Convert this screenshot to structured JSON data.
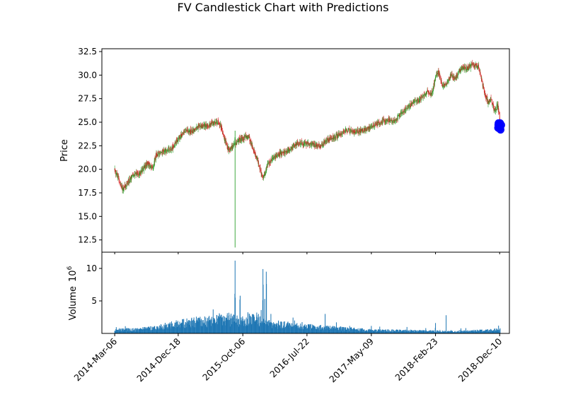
{
  "chart_data": {
    "type": "candlestick",
    "title": "FV Candlestick Chart with Predictions",
    "price_panel": {
      "ylabel": "Price",
      "ylim": [
        11.2,
        32.8
      ],
      "yticks": [
        12.5,
        15.0,
        17.5,
        20.0,
        22.5,
        25.0,
        27.5,
        30.0,
        32.5
      ],
      "ytick_labels": [
        "12.5",
        "15.0",
        "17.5",
        "20.0",
        "22.5",
        "25.0",
        "27.5",
        "30.0",
        "32.5"
      ],
      "up_color": "#2ca02c",
      "down_color": "#d62728",
      "price_path": [
        [
          "2014-03-06",
          19.9
        ],
        [
          "2014-03-20",
          19.2
        ],
        [
          "2014-04-10",
          17.9
        ],
        [
          "2014-05-05",
          18.6
        ],
        [
          "2014-06-01",
          19.5
        ],
        [
          "2014-07-01",
          19.6
        ],
        [
          "2014-08-01",
          20.7
        ],
        [
          "2014-08-25",
          20.1
        ],
        [
          "2014-09-08",
          21.5
        ],
        [
          "2014-10-15",
          21.9
        ],
        [
          "2014-11-20",
          22.2
        ],
        [
          "2014-12-18",
          23.2
        ],
        [
          "2015-01-20",
          24.1
        ],
        [
          "2015-02-20",
          24.0
        ],
        [
          "2015-03-20",
          24.5
        ],
        [
          "2015-04-20",
          24.6
        ],
        [
          "2015-05-20",
          24.9
        ],
        [
          "2015-06-15",
          25.0
        ],
        [
          "2015-06-29",
          24.6
        ],
        [
          "2015-07-15",
          23.3
        ],
        [
          "2015-08-05",
          21.9
        ],
        [
          "2015-08-25",
          22.6
        ],
        [
          "2015-09-15",
          23.1
        ],
        [
          "2015-10-06",
          23.3
        ],
        [
          "2015-11-01",
          23.5
        ],
        [
          "2015-11-20",
          22.2
        ],
        [
          "2015-12-10",
          21.1
        ],
        [
          "2016-01-05",
          19.0
        ],
        [
          "2016-01-25",
          20.4
        ],
        [
          "2016-02-20",
          21.2
        ],
        [
          "2016-03-20",
          21.6
        ],
        [
          "2016-04-20",
          21.9
        ],
        [
          "2016-05-20",
          22.5
        ],
        [
          "2016-06-20",
          22.8
        ],
        [
          "2016-07-22",
          22.7
        ],
        [
          "2016-08-20",
          22.6
        ],
        [
          "2016-09-20",
          22.4
        ],
        [
          "2016-10-20",
          23.1
        ],
        [
          "2016-11-20",
          23.4
        ],
        [
          "2016-12-20",
          23.8
        ],
        [
          "2017-01-20",
          24.2
        ],
        [
          "2017-02-20",
          23.9
        ],
        [
          "2017-03-20",
          24.1
        ],
        [
          "2017-04-20",
          24.3
        ],
        [
          "2017-05-09",
          24.6
        ],
        [
          "2017-06-20",
          25.0
        ],
        [
          "2017-07-20",
          25.3
        ],
        [
          "2017-08-20",
          25.1
        ],
        [
          "2017-09-20",
          25.9
        ],
        [
          "2017-10-20",
          26.6
        ],
        [
          "2017-11-20",
          27.1
        ],
        [
          "2017-12-20",
          27.6
        ],
        [
          "2018-01-20",
          28.3
        ],
        [
          "2018-02-05",
          27.9
        ],
        [
          "2018-02-23",
          29.8
        ],
        [
          "2018-03-10",
          30.3
        ],
        [
          "2018-03-25",
          28.8
        ],
        [
          "2018-04-15",
          29.0
        ],
        [
          "2018-05-05",
          30.1
        ],
        [
          "2018-05-25",
          29.6
        ],
        [
          "2018-06-20",
          30.8
        ],
        [
          "2018-07-20",
          30.7
        ],
        [
          "2018-08-05",
          31.1
        ],
        [
          "2018-08-20",
          31.0
        ],
        [
          "2018-09-05",
          30.9
        ],
        [
          "2018-09-20",
          29.5
        ],
        [
          "2018-10-01",
          28.2
        ],
        [
          "2018-10-20",
          27.0
        ],
        [
          "2018-11-01",
          27.6
        ],
        [
          "2018-11-15",
          26.2
        ],
        [
          "2018-12-01",
          26.8
        ],
        [
          "2018-12-12",
          25.1
        ]
      ],
      "outlier_candle": {
        "date": "2015-09-01",
        "open": 23.4,
        "close": 22.6,
        "high": 24.1,
        "low": 11.7
      },
      "predictions": {
        "color": "#0000ff",
        "points": [
          [
            "2018-12-03",
            24.4
          ],
          [
            "2018-12-04",
            24.7
          ],
          [
            "2018-12-05",
            24.9
          ],
          [
            "2018-12-06",
            24.5
          ],
          [
            "2018-12-07",
            24.8
          ],
          [
            "2018-12-10",
            24.3
          ],
          [
            "2018-12-11",
            24.6
          ],
          [
            "2018-12-12",
            24.9
          ],
          [
            "2018-12-13",
            24.5
          ],
          [
            "2018-12-14",
            24.2
          ],
          [
            "2018-12-17",
            24.7
          ]
        ]
      }
    },
    "volume_panel": {
      "ylabel": "Volume",
      "scale_label": "10^6",
      "ylim": [
        0,
        12.5
      ],
      "yticks": [
        5,
        10
      ],
      "ytick_labels": [
        "5",
        "10"
      ],
      "bar_color": "#1f77b4",
      "volume_path": [
        [
          "2014-03-06",
          0.6
        ],
        [
          "2014-06-01",
          0.6
        ],
        [
          "2014-09-01",
          0.9
        ],
        [
          "2014-12-18",
          1.6
        ],
        [
          "2015-03-01",
          1.9
        ],
        [
          "2015-06-01",
          2.1
        ],
        [
          "2015-08-01",
          2.4
        ],
        [
          "2015-10-06",
          2.0
        ],
        [
          "2015-12-01",
          2.6
        ],
        [
          "2016-02-01",
          1.6
        ],
        [
          "2016-07-22",
          1.1
        ],
        [
          "2017-01-01",
          0.8
        ],
        [
          "2017-05-09",
          0.5
        ],
        [
          "2018-01-01",
          0.4
        ],
        [
          "2018-06-01",
          0.3
        ],
        [
          "2018-12-12",
          0.6
        ]
      ],
      "spikes": [
        [
          "2015-09-01",
          11.2
        ],
        [
          "2015-08-31",
          6.1
        ],
        [
          "2015-09-02",
          5.5
        ],
        [
          "2015-09-24",
          5.8
        ],
        [
          "2015-09-23",
          5.2
        ],
        [
          "2016-01-05",
          9.9
        ],
        [
          "2016-01-06",
          7.5
        ],
        [
          "2016-01-20",
          9.5
        ],
        [
          "2016-01-21",
          7.6
        ],
        [
          "2016-01-13",
          5.3
        ],
        [
          "2016-01-04",
          5.1
        ],
        [
          "2015-12-28",
          3.6
        ],
        [
          "2016-02-10",
          3.0
        ],
        [
          "2015-06-22",
          3.1
        ],
        [
          "2016-10-12",
          3.0
        ],
        [
          "2018-04-12",
          2.8
        ],
        [
          "2018-02-23",
          1.6
        ],
        [
          "2018-12-05",
          1.2
        ]
      ]
    },
    "x_axis": {
      "xlim": [
        "2014-01-07",
        "2019-01-23"
      ],
      "ticks": [
        "2014-03-06",
        "2014-12-18",
        "2015-10-06",
        "2016-07-22",
        "2017-05-09",
        "2018-02-23",
        "2018-12-10"
      ],
      "tick_labels": [
        "2014-Mar-06",
        "2014-Dec-18",
        "2015-Oct-06",
        "2016-Jul-22",
        "2017-May-09",
        "2018-Feb-23",
        "2018-Dec-10"
      ]
    }
  }
}
